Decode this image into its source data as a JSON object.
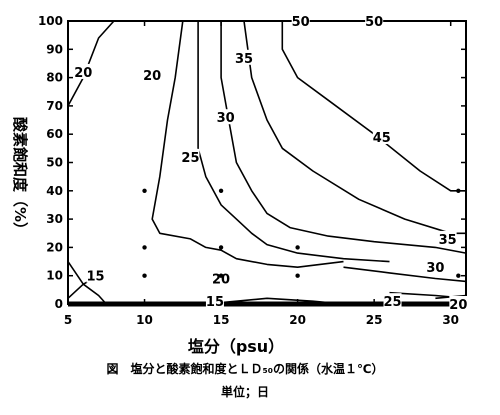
{
  "chart_data": {
    "type": "contour",
    "xlabel": "塩分（psu）",
    "ylabel": "酸素飽和度（%）",
    "xlim": [
      5,
      31
    ],
    "ylim": [
      0,
      100
    ],
    "x_ticks": [
      "5",
      "10",
      "15",
      "20",
      "25",
      "30"
    ],
    "y_ticks": [
      "0",
      "10",
      "20",
      "30",
      "40",
      "50",
      "60",
      "70",
      "80",
      "90",
      "100"
    ],
    "caption": "図　塩分と酸素飽和度とＬＤ₅₀の関係（水温１℃）",
    "unit_note": "単位；日",
    "contours": [
      {
        "level": "20",
        "points": [
          [
            5,
            70
          ],
          [
            6,
            80
          ],
          [
            7,
            94
          ],
          [
            8,
            100
          ]
        ]
      },
      {
        "level": "20",
        "points": [
          [
            5,
            15
          ],
          [
            6,
            7
          ],
          [
            7,
            3
          ],
          [
            7.5,
            0
          ]
        ]
      },
      {
        "level": "15",
        "points": [
          [
            5,
            2
          ],
          [
            6,
            7
          ],
          [
            7,
            10
          ]
        ]
      },
      {
        "level": "20",
        "points": [
          [
            12.5,
            100
          ],
          [
            12,
            80
          ],
          [
            11.5,
            65
          ],
          [
            11,
            45
          ],
          [
            10.5,
            30
          ],
          [
            11,
            25
          ],
          [
            13,
            23
          ],
          [
            14,
            20
          ],
          [
            15,
            19
          ],
          [
            16,
            16
          ],
          [
            18,
            14
          ],
          [
            20,
            13
          ],
          [
            23,
            15
          ]
        ]
      },
      {
        "level": "25",
        "points": [
          [
            13.5,
            100
          ],
          [
            13.5,
            80
          ],
          [
            13.5,
            55
          ],
          [
            14,
            45
          ],
          [
            15,
            35
          ],
          [
            16,
            30
          ],
          [
            17,
            25
          ],
          [
            18,
            21
          ],
          [
            20,
            18
          ],
          [
            23,
            16
          ],
          [
            26,
            15
          ]
        ]
      },
      {
        "level": "30",
        "points": [
          [
            15,
            100
          ],
          [
            15,
            80
          ],
          [
            15.5,
            65
          ],
          [
            16,
            50
          ],
          [
            17,
            40
          ],
          [
            18,
            32
          ],
          [
            19.5,
            27
          ],
          [
            22,
            24
          ],
          [
            25,
            22
          ],
          [
            29,
            20
          ],
          [
            31,
            18
          ]
        ]
      },
      {
        "level": "35",
        "points": [
          [
            16.5,
            100
          ],
          [
            17,
            80
          ],
          [
            18,
            65
          ],
          [
            19,
            55
          ],
          [
            21,
            47
          ],
          [
            24,
            37
          ],
          [
            27,
            30
          ],
          [
            30,
            25
          ],
          [
            31,
            25
          ]
        ]
      },
      {
        "level": "45",
        "points": [
          [
            19,
            100
          ],
          [
            19,
            90
          ],
          [
            20,
            80
          ],
          [
            22,
            72
          ],
          [
            25,
            60
          ],
          [
            28,
            47
          ],
          [
            30,
            40
          ],
          [
            31,
            40
          ]
        ]
      },
      {
        "level": "50",
        "points": [
          [
            19,
            100
          ],
          [
            31,
            100
          ]
        ]
      },
      {
        "level": "30",
        "points": [
          [
            23,
            13
          ],
          [
            26,
            11
          ],
          [
            29,
            9
          ],
          [
            31,
            8
          ]
        ]
      },
      {
        "level": "25",
        "points": [
          [
            26,
            4
          ],
          [
            29,
            3
          ],
          [
            31,
            2
          ]
        ]
      },
      {
        "level": "15",
        "points": [
          [
            14,
            0
          ],
          [
            16,
            1
          ],
          [
            18,
            2
          ],
          [
            21,
            1
          ],
          [
            23,
            0
          ]
        ]
      },
      {
        "level": "20",
        "points": [
          [
            29,
            2
          ],
          [
            31,
            3
          ]
        ]
      }
    ],
    "contour_labels": [
      {
        "text": "20",
        "x": 6,
        "y": 82
      },
      {
        "text": "20",
        "x": 10.5,
        "y": 81
      },
      {
        "text": "25",
        "x": 13,
        "y": 52
      },
      {
        "text": "30",
        "x": 15.3,
        "y": 66
      },
      {
        "text": "35",
        "x": 16.5,
        "y": 87
      },
      {
        "text": "50",
        "x": 20.2,
        "y": 100
      },
      {
        "text": "50",
        "x": 25,
        "y": 100
      },
      {
        "text": "45",
        "x": 25.5,
        "y": 59
      },
      {
        "text": "35",
        "x": 29.8,
        "y": 23
      },
      {
        "text": "30",
        "x": 29,
        "y": 13
      },
      {
        "text": "20",
        "x": 15,
        "y": 9
      },
      {
        "text": "15",
        "x": 6.8,
        "y": 10
      },
      {
        "text": "15",
        "x": 14.6,
        "y": 1
      },
      {
        "text": "25",
        "x": 26.2,
        "y": 1
      },
      {
        "text": "20",
        "x": 30.5,
        "y": 0
      }
    ],
    "sample_points": [
      [
        10,
        10
      ],
      [
        10,
        20
      ],
      [
        10,
        40
      ],
      [
        15,
        10
      ],
      [
        15,
        20
      ],
      [
        15,
        40
      ],
      [
        20,
        10
      ],
      [
        20,
        20
      ],
      [
        30.5,
        10
      ],
      [
        30.5,
        40
      ]
    ]
  }
}
